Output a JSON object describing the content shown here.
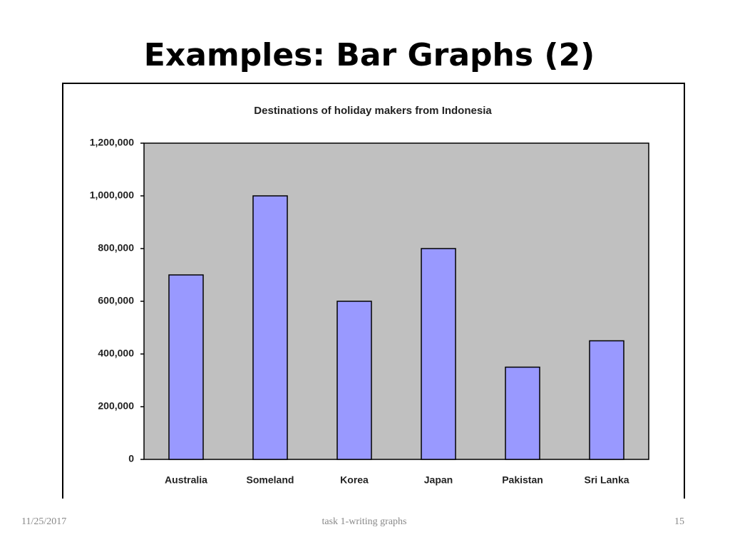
{
  "slide": {
    "title": "Examples: Bar Graphs (2)",
    "footer_date": "11/25/2017",
    "footer_text": "task 1-writing graphs",
    "page_number": "15"
  },
  "chart_data": {
    "type": "bar",
    "title": "Destinations of holiday makers from Indonesia",
    "categories": [
      "Australia",
      "Someland",
      "Korea",
      "Japan",
      "Pakistan",
      "Sri Lanka"
    ],
    "values": [
      700000,
      1000000,
      600000,
      800000,
      350000,
      450000
    ],
    "color": "#9999ff",
    "ylim": [
      0,
      1200000
    ],
    "yticks": [
      0,
      {
        "value": 200000,
        "label": "200,000"
      },
      {
        "value": 400000,
        "label": "400,000"
      },
      {
        "value": 600000,
        "label": "600,000"
      },
      {
        "value": 800000,
        "label": "800,000"
      },
      {
        "value": 1000000,
        "label": "1,000,000"
      },
      {
        "value": 1200000,
        "label": "1,200,000"
      }
    ]
  }
}
